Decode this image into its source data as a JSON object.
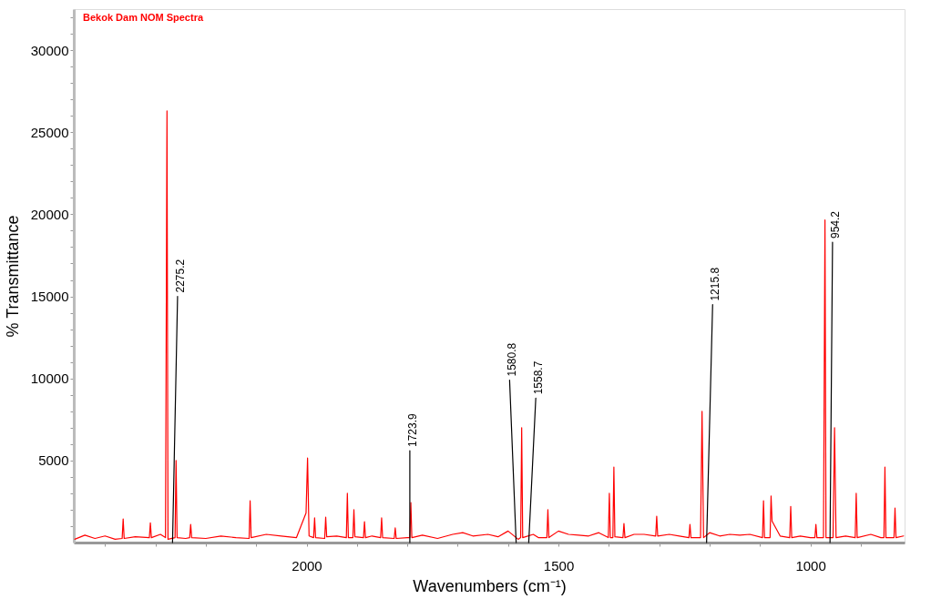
{
  "chart_data": {
    "type": "line",
    "title": "Bekok Dam NOM Spectra",
    "xlabel": "Wavenumbers (cm⁻¹)",
    "ylabel": "% Transmittance",
    "xlim": [
      2462,
      813
    ],
    "ylim": [
      0,
      32500
    ],
    "xticks": [
      {
        "value": 2400,
        "label": null
      },
      {
        "value": 2300,
        "label": null
      },
      {
        "value": 2200,
        "label": null
      },
      {
        "value": 2100,
        "label": null
      },
      2000,
      {
        "value": 1900,
        "label": null
      },
      {
        "value": 1800,
        "label": null
      },
      {
        "value": 1700,
        "label": null
      },
      {
        "value": 1600,
        "label": null
      },
      1500,
      {
        "value": 1400,
        "label": null
      },
      {
        "value": 1300,
        "label": null
      },
      {
        "value": 1200,
        "label": null
      },
      {
        "value": 1100,
        "label": null
      },
      1000,
      {
        "value": 900,
        "label": null
      }
    ],
    "yticks": [
      {
        "value": 1000,
        "label": null
      },
      {
        "value": 2000,
        "label": null
      },
      {
        "value": 3000,
        "label": null
      },
      {
        "value": 4000,
        "label": null
      },
      5000,
      {
        "value": 6000,
        "label": null
      },
      {
        "value": 7000,
        "label": null
      },
      {
        "value": 8000,
        "label": null
      },
      {
        "value": 9000,
        "label": null
      },
      10000,
      {
        "value": 11000,
        "label": null
      },
      {
        "value": 12000,
        "label": null
      },
      {
        "value": 13000,
        "label": null
      },
      {
        "value": 14000,
        "label": null
      },
      15000,
      {
        "value": 16000,
        "label": null
      },
      {
        "value": 17000,
        "label": null
      },
      {
        "value": 18000,
        "label": null
      },
      {
        "value": 19000,
        "label": null
      },
      20000,
      {
        "value": 21000,
        "label": null
      },
      {
        "value": 22000,
        "label": null
      },
      {
        "value": 23000,
        "label": null
      },
      {
        "value": 24000,
        "label": null
      },
      25000,
      {
        "value": 26000,
        "label": null
      },
      {
        "value": 27000,
        "label": null
      },
      {
        "value": 28000,
        "label": null
      },
      {
        "value": 29000,
        "label": null
      },
      30000,
      {
        "value": 31000,
        "label": null
      },
      {
        "value": 32000,
        "label": null
      }
    ],
    "grid": false,
    "series": [
      {
        "color": "#ff0000",
        "x": [
          2460,
          2440,
          2420,
          2400,
          2380,
          2366,
          2364,
          2362,
          2340,
          2312,
          2310,
          2308,
          2290,
          2280,
          2277,
          2275,
          2261,
          2259,
          2257,
          2240,
          2232,
          2230,
          2228,
          2200,
          2170,
          2140,
          2114,
          2112,
          2110,
          2080,
          2050,
          2020,
          2001,
          1998,
          1995,
          1986,
          1984,
          1982,
          1964,
          1962,
          1960,
          1940,
          1921,
          1919,
          1917,
          1908,
          1906,
          1904,
          1887,
          1885,
          1883,
          1870,
          1853,
          1851,
          1849,
          1826,
          1824,
          1822,
          1800,
          1795,
          1793,
          1791,
          1770,
          1740,
          1710,
          1690,
          1670,
          1640,
          1620,
          1600,
          1580,
          1575,
          1573,
          1571,
          1550,
          1540,
          1523,
          1521,
          1519,
          1500,
          1480,
          1460,
          1440,
          1420,
          1401,
          1399,
          1397,
          1392,
          1390,
          1388,
          1372,
          1370,
          1368,
          1350,
          1330,
          1307,
          1305,
          1303,
          1280,
          1260,
          1241,
          1239,
          1237,
          1218,
          1215,
          1212,
          1200,
          1180,
          1160,
          1140,
          1120,
          1095,
          1093,
          1091,
          1080,
          1078,
          1076,
          1060,
          1041,
          1039,
          1037,
          1020,
          1000,
          991,
          989,
          987,
          974,
          971,
          969,
          955,
          952,
          949,
          930,
          911,
          909,
          907,
          880,
          860,
          854,
          852,
          850,
          834,
          832,
          830,
          815
        ],
        "values": [
          200,
          450,
          250,
          400,
          200,
          250,
          1440,
          250,
          350,
          300,
          1200,
          300,
          500,
          300,
          26300,
          200,
          300,
          5000,
          300,
          250,
          300,
          1100,
          300,
          250,
          400,
          300,
          250,
          2550,
          300,
          500,
          400,
          300,
          1800,
          5150,
          400,
          300,
          1500,
          300,
          250,
          1550,
          350,
          400,
          300,
          3000,
          300,
          300,
          2000,
          350,
          300,
          1270,
          300,
          400,
          300,
          1500,
          300,
          250,
          890,
          250,
          300,
          300,
          2440,
          300,
          450,
          250,
          500,
          600,
          400,
          500,
          350,
          700,
          200,
          300,
          7000,
          300,
          500,
          300,
          300,
          2000,
          300,
          700,
          500,
          450,
          400,
          600,
          300,
          3000,
          300,
          300,
          4600,
          350,
          300,
          1160,
          300,
          500,
          500,
          400,
          1600,
          400,
          500,
          400,
          300,
          1100,
          300,
          300,
          8000,
          300,
          600,
          400,
          500,
          450,
          500,
          300,
          2550,
          300,
          300,
          2830,
          1300,
          400,
          300,
          2200,
          300,
          400,
          300,
          300,
          1100,
          300,
          300,
          19650,
          300,
          300,
          7000,
          300,
          400,
          300,
          3000,
          300,
          500,
          300,
          300,
          4600,
          300,
          300,
          2100,
          300,
          400
        ]
      },
      {
        "color": "#000000",
        "x": [
          2266,
          2256,
          null,
          1795,
          1795,
          null,
          1584,
          1597,
          null,
          1559,
          1545,
          null,
          1206,
          1194,
          null,
          961,
          956
        ],
        "values": [
          0,
          15000,
          null,
          0,
          5600,
          null,
          0,
          9900,
          null,
          0,
          8800,
          null,
          0,
          14500,
          null,
          0,
          18300
        ]
      }
    ],
    "annotations": [
      {
        "text": "2275.2",
        "x": 2256,
        "y": 15000
      },
      {
        "text": "1723.9",
        "x": 1795,
        "y": 5600
      },
      {
        "text": "1580.8",
        "x": 1597,
        "y": 9900
      },
      {
        "text": "1558.7",
        "x": 1545,
        "y": 8800
      },
      {
        "text": "1215.8",
        "x": 1194,
        "y": 14500
      },
      {
        "text": "954.2",
        "x": 956,
        "y": 18300
      }
    ]
  }
}
